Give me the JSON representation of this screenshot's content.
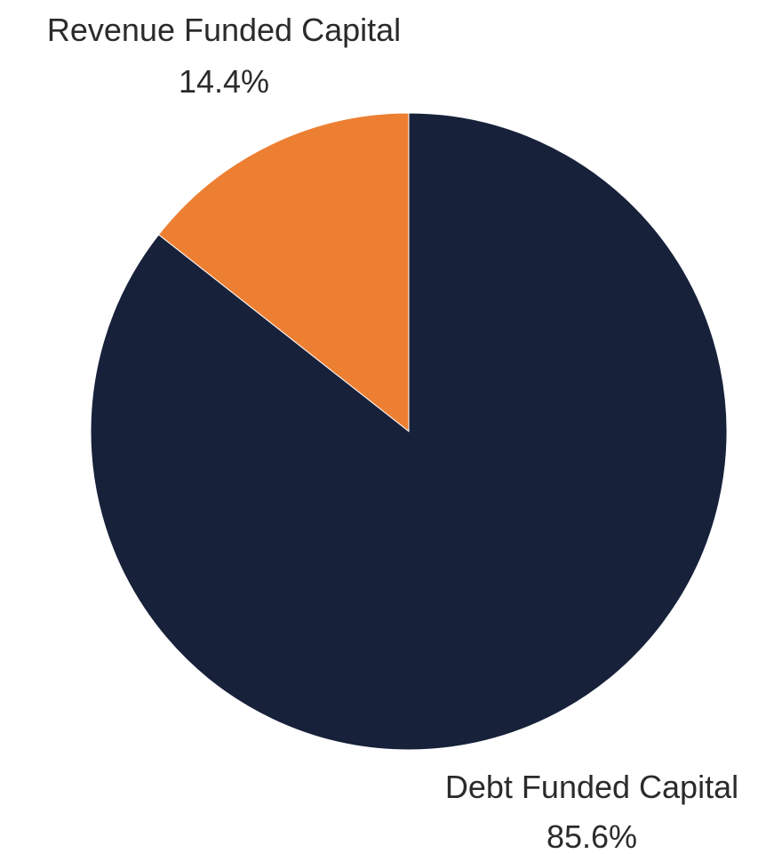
{
  "chart_data": {
    "type": "pie",
    "slices": [
      {
        "label": "Revenue Funded Capital",
        "value": 14.4,
        "value_label": "14.4%",
        "color": "#ED7F33"
      },
      {
        "label": "Debt Funded Capital",
        "value": 85.6,
        "value_label": "85.6%",
        "color": "#17213A"
      }
    ],
    "start": "top",
    "direction": "counterclockwise-for-first-slice",
    "legend": "none",
    "labels": "outside"
  }
}
